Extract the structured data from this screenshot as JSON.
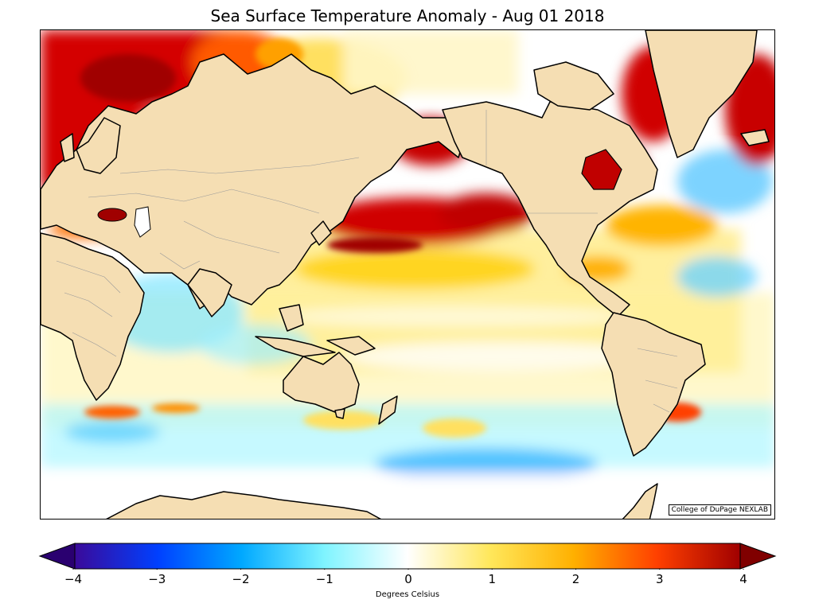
{
  "title": "Sea Surface Temperature Anomaly - Aug 01 2018",
  "credit": "College of DuPage NEXLAB",
  "colorbar": {
    "label": "Degrees Celsius",
    "ticks": [
      "−4",
      "−3",
      "−2",
      "−1",
      "0",
      "1",
      "2",
      "3",
      "4"
    ],
    "range": [
      -4,
      4
    ],
    "colors": [
      "#3a0a9a",
      "#0040ff",
      "#00a8ff",
      "#7ff4ff",
      "#ffffff",
      "#ffe75a",
      "#ffb000",
      "#ff4000",
      "#a00000"
    ]
  },
  "map": {
    "land_color": "#f5deb3",
    "ocean_base_color": "#ffffff"
  }
}
